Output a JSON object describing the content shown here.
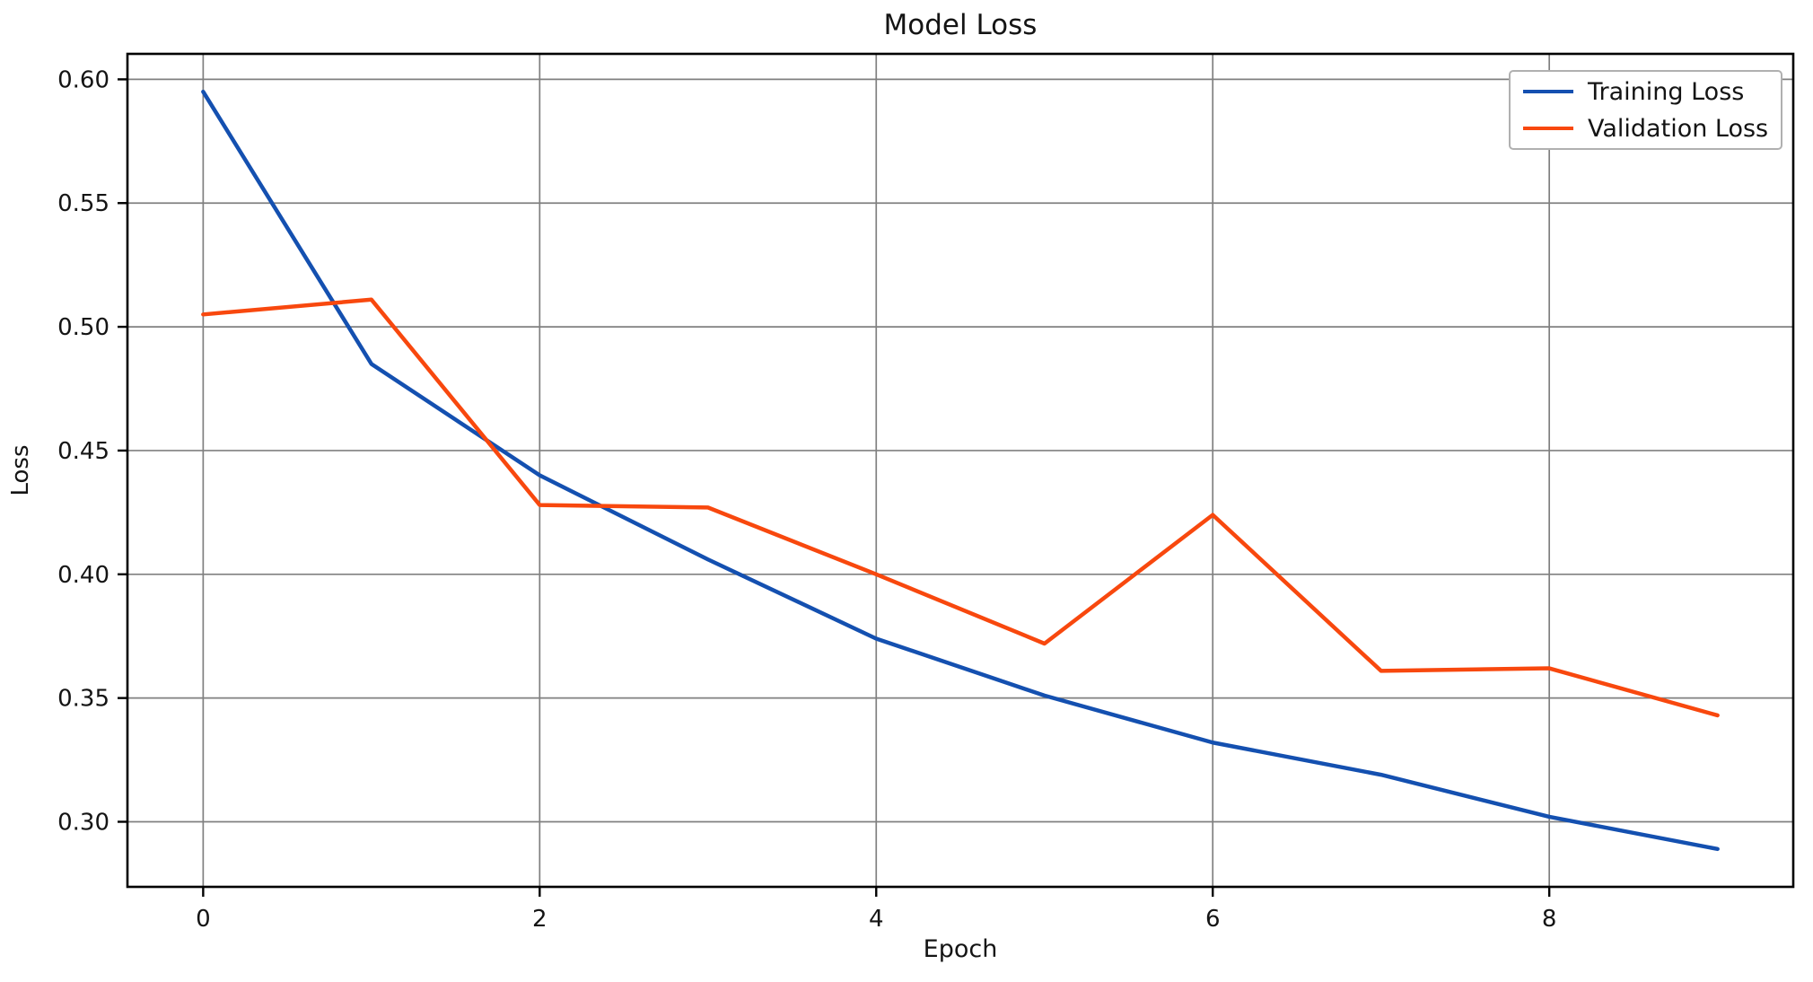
{
  "figure": {
    "background": "#ffffff",
    "text_color": "#141414",
    "spine_color": "#000000",
    "grid_color": "#808080"
  },
  "chart_data": {
    "type": "line",
    "title": "Model Loss",
    "xlabel": "Epoch",
    "ylabel": "Loss",
    "x": [
      0,
      1,
      2,
      3,
      4,
      5,
      6,
      7,
      8,
      9
    ],
    "series": [
      {
        "name": "Training Loss",
        "color": "#1450b0",
        "values": [
          0.595,
          0.485,
          0.44,
          0.406,
          0.374,
          0.351,
          0.332,
          0.319,
          0.302,
          0.289
        ]
      },
      {
        "name": "Validation Loss",
        "color": "#f8480e",
        "values": [
          0.505,
          0.511,
          0.428,
          0.427,
          0.4,
          0.372,
          0.424,
          0.361,
          0.362,
          0.343
        ]
      }
    ],
    "xlim": [
      -0.45,
      9.45
    ],
    "ylim": [
      0.2737,
      0.6103
    ],
    "xticks": [
      0,
      2,
      4,
      6,
      8
    ],
    "xtick_labels": [
      "0",
      "2",
      "4",
      "6",
      "8"
    ],
    "yticks": [
      0.3,
      0.35,
      0.4,
      0.45,
      0.5,
      0.55,
      0.6
    ],
    "ytick_labels": [
      "0.30",
      "0.35",
      "0.40",
      "0.45",
      "0.50",
      "0.55",
      "0.60"
    ],
    "grid": true,
    "legend_position": "upper right"
  }
}
